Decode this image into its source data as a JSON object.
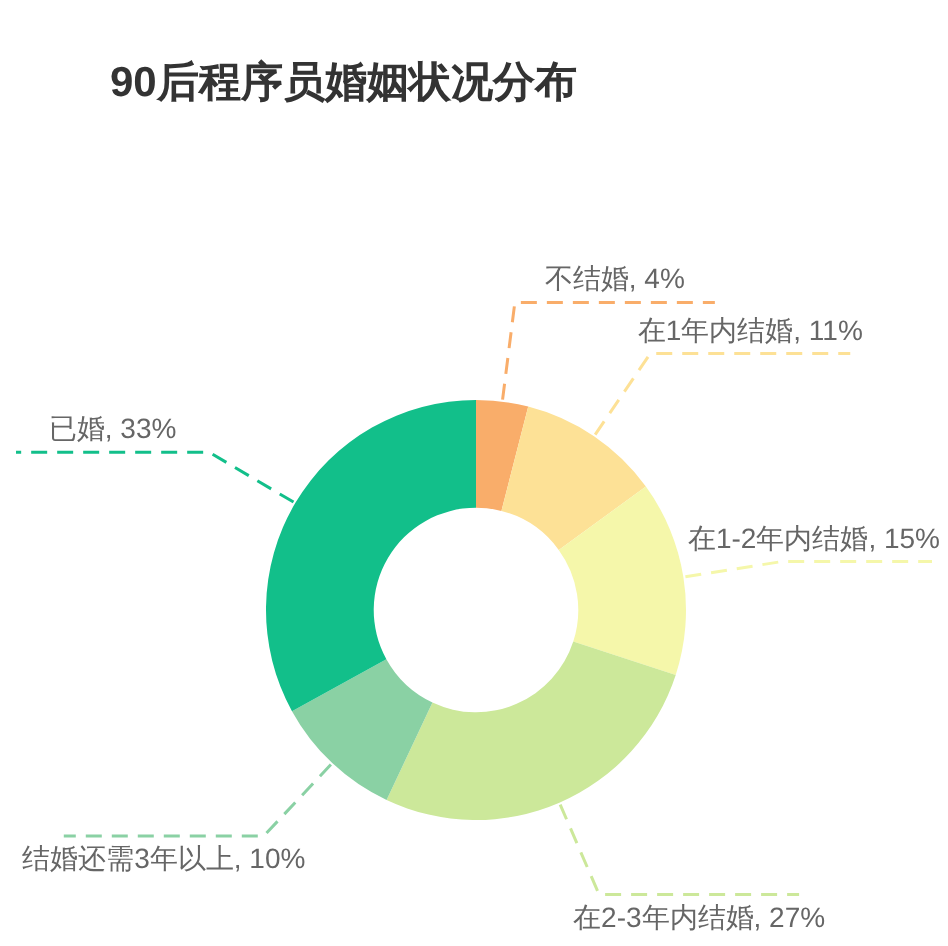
{
  "chart_data": {
    "type": "donut",
    "title": "90后程序员婚姻状况分布",
    "categories": [
      "不结婚",
      "在1年内结婚",
      "在1-2年内结婚",
      "在2-3年内结婚",
      "结婚还需3年以上",
      "已婚"
    ],
    "values": [
      4,
      11,
      15,
      27,
      10,
      33
    ],
    "colors": [
      "#f9ad6a",
      "#fde196",
      "#f5f7aa",
      "#cce89a",
      "#8ad1a4",
      "#12bf8a"
    ],
    "value_labels": [
      "4%",
      "11%",
      "15%",
      "27%",
      "10%",
      "33%"
    ]
  }
}
